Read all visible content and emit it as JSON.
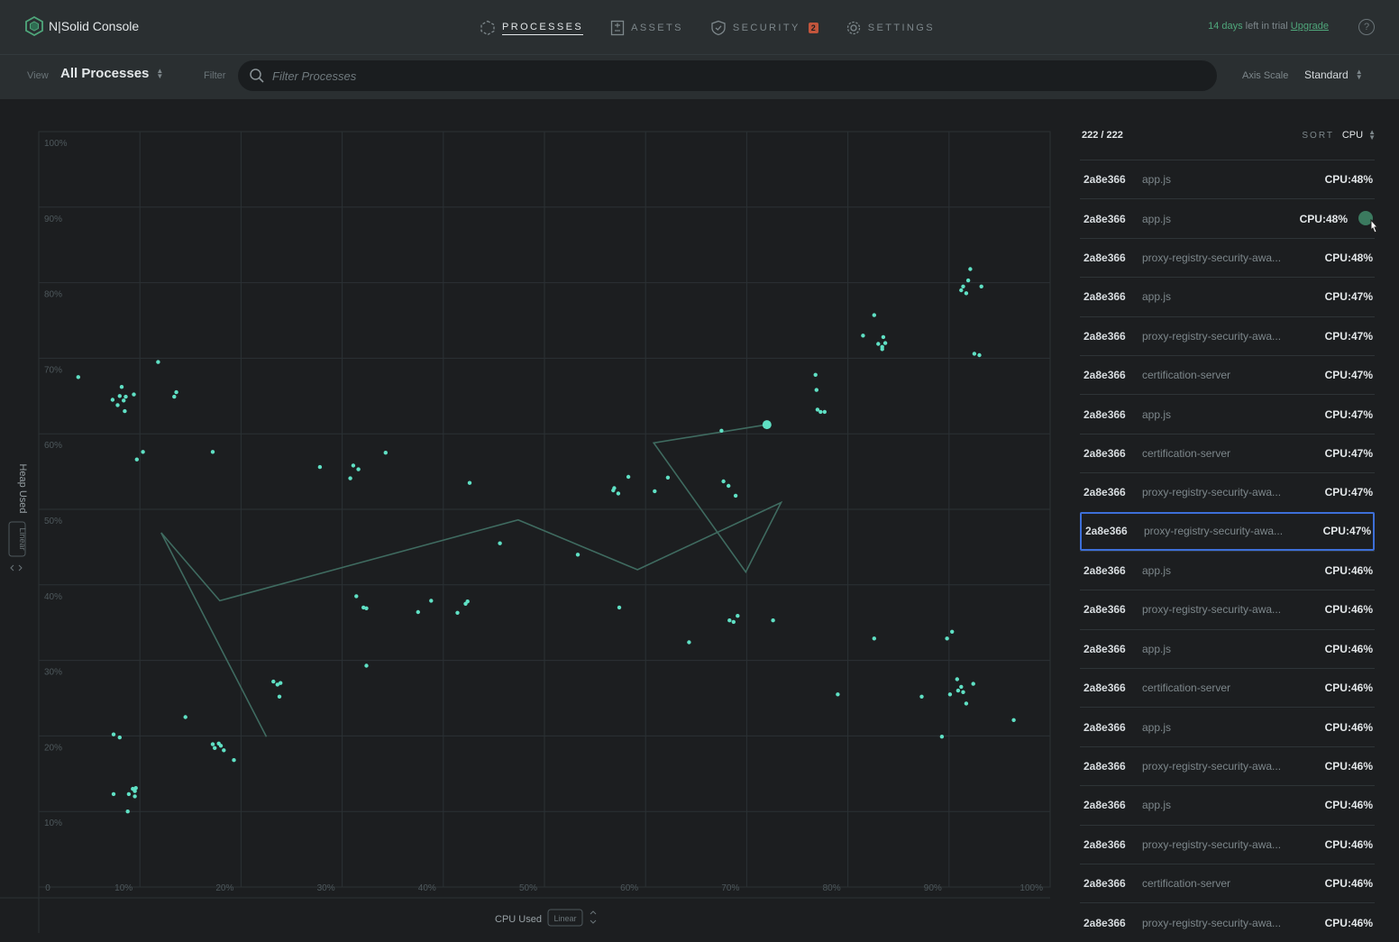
{
  "app": {
    "title": "N|Solid Console",
    "trial_days": "14 days",
    "trial_rest": " left in trial ",
    "upgrade": "Upgrade",
    "help": "?"
  },
  "nav": {
    "processes": "PROCESSES",
    "assets": "ASSETS",
    "security": "SECURITY",
    "security_badge": "2",
    "settings": "SETTINGS"
  },
  "filterbar": {
    "view_label": "View",
    "view_value": "All Processes",
    "filter_label": "Filter",
    "filter_placeholder": "Filter Processes",
    "filter_value": "",
    "axis_scale_label": "Axis Scale",
    "axis_scale_value": "Standard"
  },
  "colors": {
    "accent": "#5fe0c4",
    "trail": "#3f6b60",
    "selected_border": "#3d6fd8",
    "trial_green": "#4fa77b",
    "badge": "#c2553c"
  },
  "chart_data": {
    "type": "scatter",
    "xlabel": "CPU Used",
    "ylabel": "Heap Used",
    "x_scale": "Linear",
    "y_scale": "Linear",
    "xlim": [
      0,
      100
    ],
    "ylim": [
      0,
      100
    ],
    "x_ticks": [
      "0",
      "10%",
      "20%",
      "30%",
      "40%",
      "50%",
      "60%",
      "70%",
      "80%",
      "90%",
      "100%"
    ],
    "y_ticks": [
      "10%",
      "20%",
      "30%",
      "40%",
      "50%",
      "60%",
      "70%",
      "80%",
      "90%",
      "100%"
    ],
    "grid": true,
    "points": [
      [
        3.9,
        67.5
      ],
      [
        7.3,
        64.5
      ],
      [
        7.8,
        63.8
      ],
      [
        8.0,
        65.0
      ],
      [
        8.4,
        64.4
      ],
      [
        8.6,
        64.9
      ],
      [
        9.4,
        65.2
      ],
      [
        8.2,
        66.2
      ],
      [
        8.5,
        63.0
      ],
      [
        9.7,
        56.6
      ],
      [
        10.3,
        57.6
      ],
      [
        11.8,
        69.5
      ],
      [
        13.4,
        64.9
      ],
      [
        13.6,
        65.5
      ],
      [
        17.2,
        57.6
      ],
      [
        27.8,
        55.6
      ],
      [
        30.8,
        54.1
      ],
      [
        31.1,
        55.8
      ],
      [
        31.6,
        55.3
      ],
      [
        34.3,
        57.5
      ],
      [
        42.6,
        53.5
      ],
      [
        45.6,
        45.5
      ],
      [
        53.3,
        44.0
      ],
      [
        56.8,
        52.5
      ],
      [
        56.9,
        52.8
      ],
      [
        57.3,
        52.1
      ],
      [
        58.3,
        54.3
      ],
      [
        60.9,
        52.4
      ],
      [
        62.2,
        54.2
      ],
      [
        67.5,
        60.4
      ],
      [
        67.7,
        53.7
      ],
      [
        68.2,
        53.1
      ],
      [
        68.9,
        51.8
      ],
      [
        76.8,
        67.8
      ],
      [
        76.9,
        65.8
      ],
      [
        77.0,
        63.2
      ],
      [
        77.3,
        62.9
      ],
      [
        77.7,
        62.9
      ],
      [
        81.5,
        73.0
      ],
      [
        82.6,
        75.7
      ],
      [
        83.0,
        71.9
      ],
      [
        83.4,
        71.5
      ],
      [
        83.7,
        72.0
      ],
      [
        83.5,
        72.8
      ],
      [
        83.4,
        71.2
      ],
      [
        91.2,
        79.0
      ],
      [
        91.4,
        79.5
      ],
      [
        91.7,
        78.6
      ],
      [
        91.9,
        80.3
      ],
      [
        93.2,
        79.5
      ],
      [
        92.1,
        81.8
      ],
      [
        92.5,
        70.6
      ],
      [
        93.0,
        70.4
      ],
      [
        31.4,
        38.5
      ],
      [
        32.1,
        37.0
      ],
      [
        32.4,
        36.9
      ],
      [
        37.5,
        36.4
      ],
      [
        38.8,
        37.9
      ],
      [
        41.4,
        36.3
      ],
      [
        42.2,
        37.5
      ],
      [
        42.4,
        37.8
      ],
      [
        57.4,
        37.0
      ],
      [
        64.3,
        32.4
      ],
      [
        68.3,
        35.3
      ],
      [
        68.7,
        35.1
      ],
      [
        69.1,
        35.9
      ],
      [
        72.6,
        35.3
      ],
      [
        82.6,
        32.9
      ],
      [
        89.8,
        32.9
      ],
      [
        90.3,
        33.8
      ],
      [
        23.2,
        27.2
      ],
      [
        23.6,
        26.8
      ],
      [
        23.9,
        27.0
      ],
      [
        23.8,
        25.2
      ],
      [
        32.4,
        29.3
      ],
      [
        79.0,
        25.5
      ],
      [
        87.3,
        25.2
      ],
      [
        89.3,
        19.9
      ],
      [
        90.1,
        25.5
      ],
      [
        90.8,
        27.5
      ],
      [
        90.9,
        26.0
      ],
      [
        91.2,
        26.5
      ],
      [
        91.4,
        25.8
      ],
      [
        91.7,
        24.3
      ],
      [
        92.4,
        26.9
      ],
      [
        96.4,
        22.1
      ],
      [
        7.4,
        20.2
      ],
      [
        8.0,
        19.8
      ],
      [
        17.2,
        18.9
      ],
      [
        17.4,
        18.4
      ],
      [
        17.8,
        19.0
      ],
      [
        18.0,
        18.7
      ],
      [
        18.3,
        18.1
      ],
      [
        19.3,
        16.8
      ],
      [
        14.5,
        22.5
      ],
      [
        7.4,
        12.3
      ],
      [
        8.9,
        12.3
      ],
      [
        9.3,
        13.0
      ],
      [
        9.5,
        12.7
      ],
      [
        9.6,
        13.1
      ],
      [
        9.5,
        12.0
      ],
      [
        8.8,
        10.0
      ]
    ],
    "selected_point": [
      72.0,
      61.2
    ],
    "trail": [
      [
        12.1,
        46.9
      ],
      [
        17.9,
        37.9
      ],
      [
        47.4,
        48.6
      ],
      [
        59.2,
        42.0
      ],
      [
        73.4,
        50.9
      ],
      [
        69.9,
        41.7
      ],
      [
        60.8,
        58.8
      ],
      [
        72.0,
        61.2
      ]
    ],
    "trail_tail": [
      [
        12.1,
        46.9
      ],
      [
        22.5,
        19.9
      ]
    ]
  },
  "list": {
    "count": "222 / 222",
    "sort_label": "SORT",
    "sort_value": "CPU",
    "rows": [
      {
        "pid": "2a8e366",
        "name": "app.js",
        "cpu": "CPU:48%"
      },
      {
        "pid": "2a8e366",
        "name": "app.js",
        "cpu": "CPU:48%",
        "hover": true
      },
      {
        "pid": "2a8e366",
        "name": "proxy-registry-security-awa...",
        "cpu": "CPU:48%"
      },
      {
        "pid": "2a8e366",
        "name": "app.js",
        "cpu": "CPU:47%"
      },
      {
        "pid": "2a8e366",
        "name": "proxy-registry-security-awa...",
        "cpu": "CPU:47%"
      },
      {
        "pid": "2a8e366",
        "name": "certification-server",
        "cpu": "CPU:47%"
      },
      {
        "pid": "2a8e366",
        "name": "app.js",
        "cpu": "CPU:47%"
      },
      {
        "pid": "2a8e366",
        "name": "certification-server",
        "cpu": "CPU:47%"
      },
      {
        "pid": "2a8e366",
        "name": "proxy-registry-security-awa...",
        "cpu": "CPU:47%"
      },
      {
        "pid": "2a8e366",
        "name": "proxy-registry-security-awa...",
        "cpu": "CPU:47%",
        "selected": true
      },
      {
        "pid": "2a8e366",
        "name": "app.js",
        "cpu": "CPU:46%"
      },
      {
        "pid": "2a8e366",
        "name": "proxy-registry-security-awa...",
        "cpu": "CPU:46%"
      },
      {
        "pid": "2a8e366",
        "name": "app.js",
        "cpu": "CPU:46%"
      },
      {
        "pid": "2a8e366",
        "name": "certification-server",
        "cpu": "CPU:46%"
      },
      {
        "pid": "2a8e366",
        "name": "app.js",
        "cpu": "CPU:46%"
      },
      {
        "pid": "2a8e366",
        "name": "proxy-registry-security-awa...",
        "cpu": "CPU:46%"
      },
      {
        "pid": "2a8e366",
        "name": "app.js",
        "cpu": "CPU:46%"
      },
      {
        "pid": "2a8e366",
        "name": "proxy-registry-security-awa...",
        "cpu": "CPU:46%"
      },
      {
        "pid": "2a8e366",
        "name": "certification-server",
        "cpu": "CPU:46%"
      },
      {
        "pid": "2a8e366",
        "name": "proxy-registry-security-awa...",
        "cpu": "CPU:46%"
      }
    ]
  }
}
